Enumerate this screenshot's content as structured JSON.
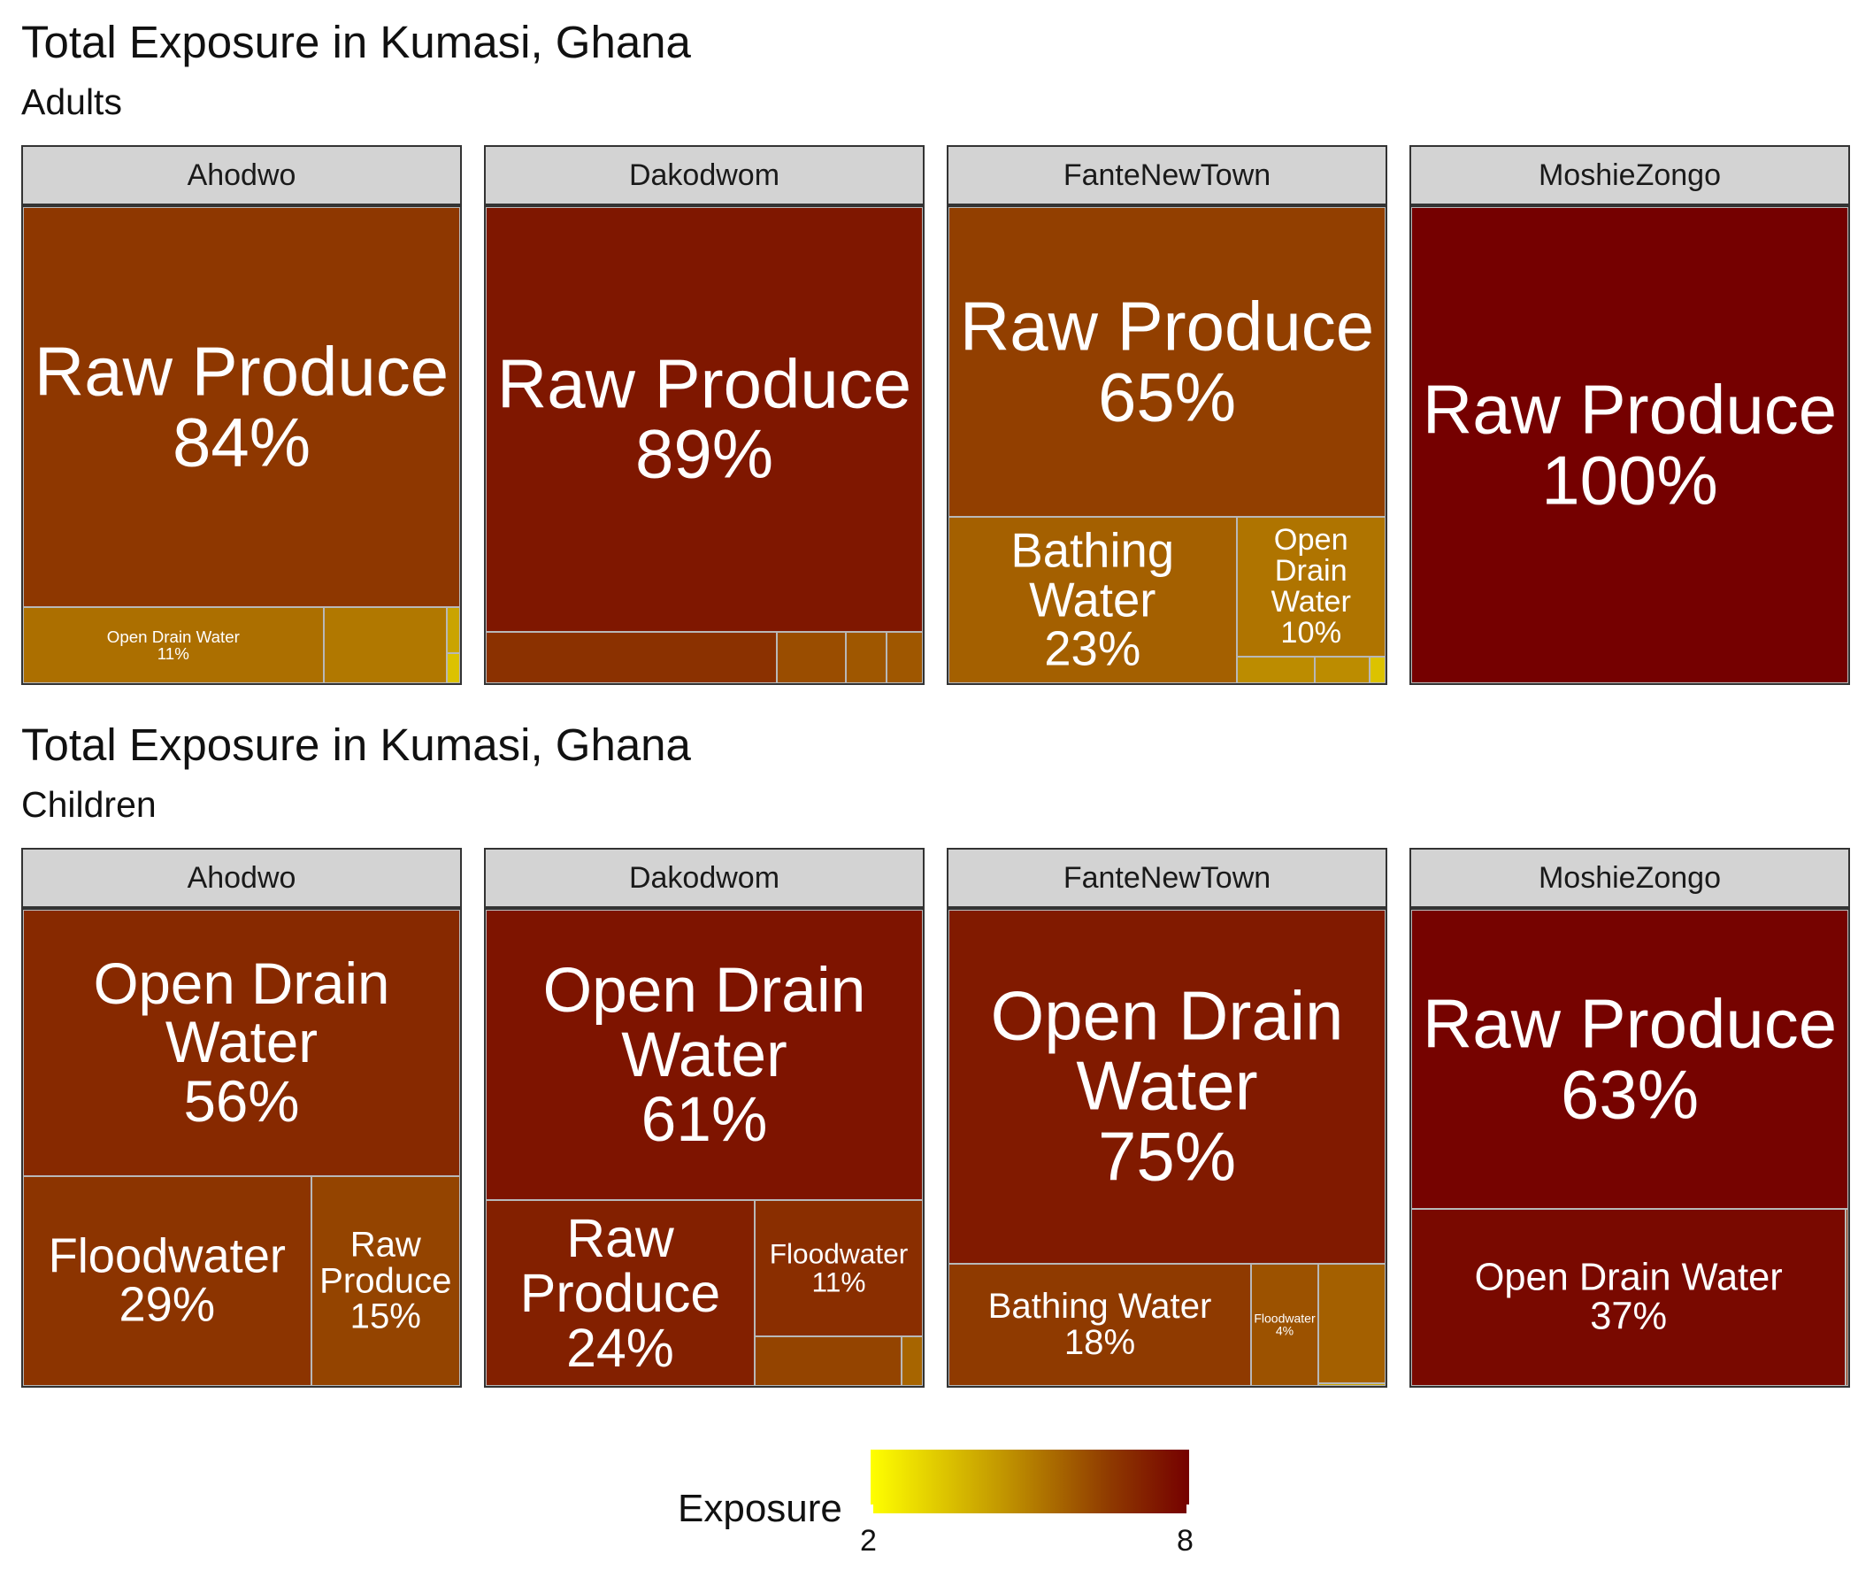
{
  "sections": [
    {
      "title": "Total Exposure in Kumasi, Ghana",
      "subtitle": "Adults",
      "facets": [
        {
          "name": "Ahodwo",
          "tiles": [
            {
              "label": "Raw Produce",
              "pct": "84%",
              "share": 0.84,
              "exposure": 6.1
            },
            {
              "label": "Open Drain Water",
              "pct": "11%",
              "share": 0.11,
              "exposure": 4.9
            },
            {
              "label": "",
              "pct": "",
              "share": 0.045,
              "exposure": 4.7
            },
            {
              "label": "",
              "pct": "",
              "share": 0.003,
              "exposure": 3.8
            },
            {
              "label": "",
              "pct": "",
              "share": 0.002,
              "exposure": 3.2
            }
          ]
        },
        {
          "name": "Dakodwom",
          "tiles": [
            {
              "label": "Raw Produce",
              "pct": "89%",
              "share": 0.89,
              "exposure": 7.2
            },
            {
              "label": "",
              "pct": "",
              "share": 0.072,
              "exposure": 6.3
            },
            {
              "label": "",
              "pct": "",
              "share": 0.017,
              "exposure": 5.6
            },
            {
              "label": "",
              "pct": "",
              "share": 0.01,
              "exposure": 5.4
            },
            {
              "label": "",
              "pct": "",
              "share": 0.009,
              "exposure": 5.4
            }
          ]
        },
        {
          "name": "FanteNewTown",
          "tiles": [
            {
              "label": "Raw Produce",
              "pct": "65%",
              "share": 0.65,
              "exposure": 5.9
            },
            {
              "label": "Bathing Water",
              "pct": "23%",
              "share": 0.23,
              "exposure": 5.2
            },
            {
              "label": "Open Drain Water",
              "pct": "10%",
              "share": 0.1,
              "exposure": 4.8
            },
            {
              "label": "",
              "pct": "",
              "share": 0.01,
              "exposure": 4.3
            },
            {
              "label": "",
              "pct": "",
              "share": 0.007,
              "exposure": 4.3
            },
            {
              "label": "",
              "pct": "",
              "share": 0.002,
              "exposure": 3.2
            }
          ]
        },
        {
          "name": "MoshieZongo",
          "tiles": [
            {
              "label": "Raw Produce",
              "pct": "100%",
              "share": 1.0,
              "exposure": 8.0
            }
          ]
        }
      ]
    },
    {
      "title": "Total Exposure in Kumasi, Ghana",
      "subtitle": "Children",
      "facets": [
        {
          "name": "Ahodwo",
          "tiles": [
            {
              "label": "Open Drain Water",
              "pct": "56%",
              "share": 0.56,
              "exposure": 6.6
            },
            {
              "label": "Floodwater",
              "pct": "29%",
              "share": 0.29,
              "exposure": 6.2
            },
            {
              "label": "Raw Produce",
              "pct": "15%",
              "share": 0.15,
              "exposure": 5.8
            }
          ]
        },
        {
          "name": "Dakodwom",
          "tiles": [
            {
              "label": "Open Drain Water",
              "pct": "61%",
              "share": 0.61,
              "exposure": 7.3
            },
            {
              "label": "Raw Produce",
              "pct": "24%",
              "share": 0.24,
              "exposure": 6.9
            },
            {
              "label": "Floodwater",
              "pct": "11%",
              "share": 0.11,
              "exposure": 6.4
            },
            {
              "label": "",
              "pct": "",
              "share": 0.035,
              "exposure": 5.8
            },
            {
              "label": "",
              "pct": "",
              "share": 0.005,
              "exposure": 5.1
            }
          ]
        },
        {
          "name": "FanteNewTown",
          "tiles": [
            {
              "label": "Open Drain Water",
              "pct": "75%",
              "share": 0.75,
              "exposure": 7.1
            },
            {
              "label": "Bathing Water",
              "pct": "18%",
              "share": 0.18,
              "exposure": 6.0
            },
            {
              "label": "Floodwater",
              "pct": "4%",
              "share": 0.04,
              "exposure": 5.5
            },
            {
              "label": "",
              "pct": "",
              "share": 0.039,
              "exposure": 5.2
            },
            {
              "label": "",
              "pct": "",
              "share": 0.001,
              "exposure": 3.8
            }
          ]
        },
        {
          "name": "MoshieZongo",
          "tiles": [
            {
              "label": "Raw Produce",
              "pct": "63%",
              "share": 0.63,
              "exposure": 7.9
            },
            {
              "label": "Open Drain Water",
              "pct": "37%",
              "share": 0.37,
              "exposure": 7.7
            },
            {
              "label": "",
              "pct": "",
              "share": 0.002,
              "exposure": 6.5
            }
          ]
        }
      ]
    }
  ],
  "legend": {
    "title": "Exposure",
    "min_label": "2",
    "max_label": "8",
    "min": 2,
    "max": 8,
    "colors": [
      "#ffff00",
      "#c49a00",
      "#8f3a00",
      "#750000"
    ]
  },
  "chart_data": {
    "type": "treemap",
    "fill_variable": "Exposure",
    "fill_range": [
      2,
      8
    ]
  }
}
